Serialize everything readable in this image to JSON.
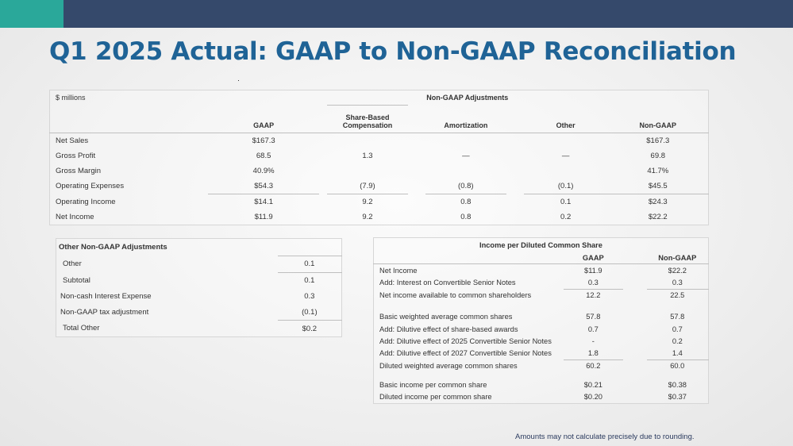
{
  "title": "Q1 2025 Actual: GAAP to Non-GAAP Reconciliation",
  "colors": {
    "topbar": "#35496b",
    "accent": "#2aa89a",
    "title": "#1f6396"
  },
  "main_table": {
    "unit": "$ millions",
    "group_header": "Non-GAAP Adjustments",
    "columns": [
      "GAAP",
      "Share-Based Compensation",
      "Amortization",
      "Other",
      "Non-GAAP"
    ],
    "rows": [
      {
        "label": "Net Sales",
        "gaap": "$167.3",
        "sbc": "",
        "amort": "",
        "other": "",
        "nongaap": "$167.3"
      },
      {
        "label": "Gross Profit",
        "gaap": "68.5",
        "sbc": "1.3",
        "amort": "—",
        "other": "—",
        "nongaap": "69.8"
      },
      {
        "label": "Gross Margin",
        "gaap": "40.9%",
        "sbc": "",
        "amort": "",
        "other": "",
        "nongaap": "41.7%"
      },
      {
        "label": "Operating Expenses",
        "gaap": "$54.3",
        "sbc": "(7.9)",
        "amort": "(0.8)",
        "other": "(0.1)",
        "nongaap": "$45.5"
      },
      {
        "label": "Operating Income",
        "gaap": "$14.1",
        "sbc": "9.2",
        "amort": "0.8",
        "other": "0.1",
        "nongaap": "$24.3"
      },
      {
        "label": "Net Income",
        "gaap": "$11.9",
        "sbc": "9.2",
        "amort": "0.8",
        "other": "0.2",
        "nongaap": "$22.2"
      }
    ]
  },
  "other_adjustments": {
    "title": "Other Non-GAAP Adjustments",
    "rows": [
      {
        "label": "Other",
        "value": "0.1"
      },
      {
        "label": "Subtotal",
        "value": "0.1"
      },
      {
        "label": "Non-cash Interest Expense",
        "value": "0.3"
      },
      {
        "label": "Non-GAAP tax adjustment",
        "value": "(0.1)"
      },
      {
        "label": "Total Other",
        "value": "$0.2"
      }
    ]
  },
  "eps_table": {
    "title": "Income per Diluted Common Share",
    "columns": [
      "GAAP",
      "Non-GAAP"
    ],
    "rows": [
      {
        "label": "Net Income",
        "gaap": "$11.9",
        "nongaap": "$22.2"
      },
      {
        "label": "Add: Interest on Convertible Senior Notes",
        "gaap": "0.3",
        "nongaap": "0.3"
      },
      {
        "label": "Net income available to common shareholders",
        "gaap": "12.2",
        "nongaap": "22.5"
      },
      {
        "label": "Basic weighted average common shares",
        "gaap": "57.8",
        "nongaap": "57.8"
      },
      {
        "label": "Add: Dilutive effect of share-based awards",
        "gaap": "0.7",
        "nongaap": "0.7"
      },
      {
        "label": "Add: Dilutive effect of 2025 Convertible Senior Notes",
        "gaap": "-",
        "nongaap": "0.2"
      },
      {
        "label": "Add: Dilutive effect of 2027 Convertible Senior Notes",
        "gaap": "1.8",
        "nongaap": "1.4"
      },
      {
        "label": "Diluted weighted average common shares",
        "gaap": "60.2",
        "nongaap": "60.0"
      },
      {
        "label": "Basic income per common share",
        "gaap": "$0.21",
        "nongaap": "$0.38"
      },
      {
        "label": "Diluted income per common share",
        "gaap": "$0.20",
        "nongaap": "$0.37"
      }
    ]
  },
  "footnote": "Amounts may not calculate precisely due to rounding."
}
